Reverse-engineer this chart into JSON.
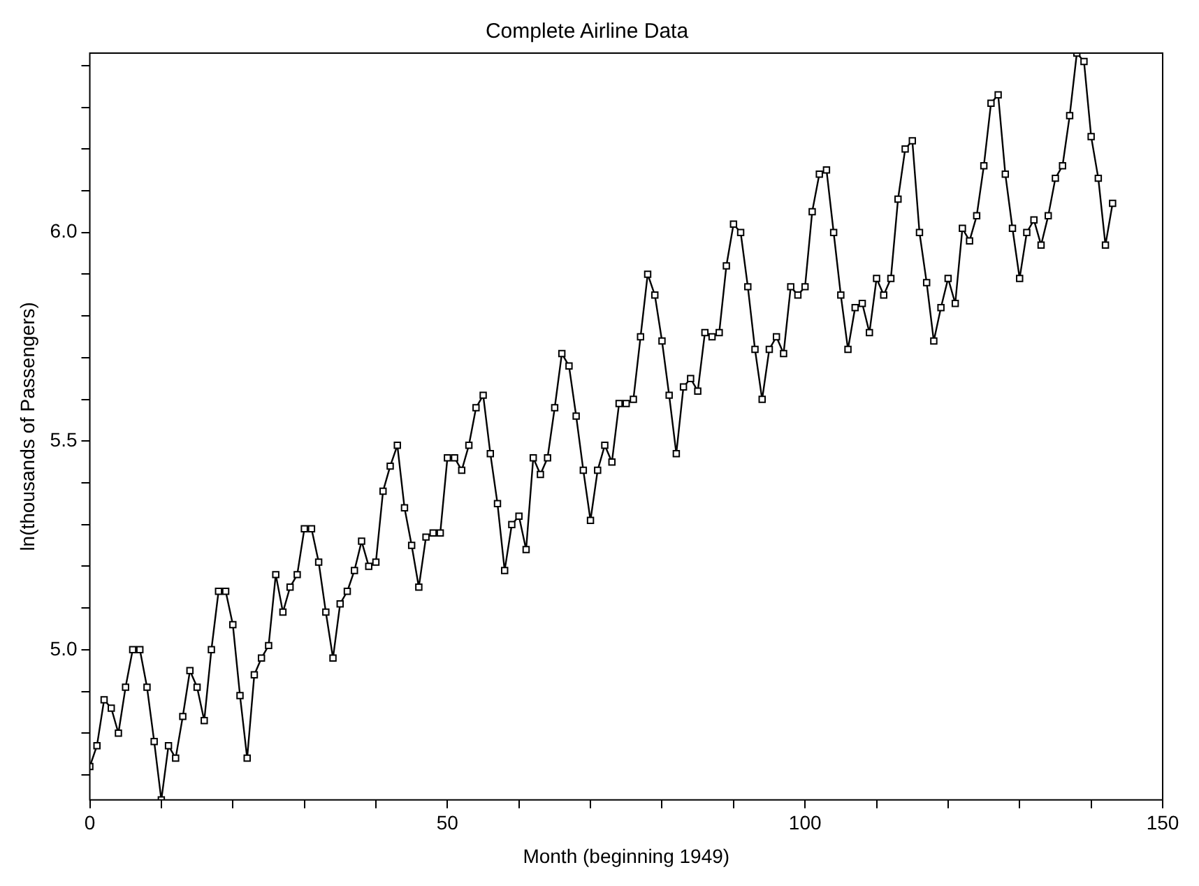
{
  "chart_data": {
    "type": "line",
    "title": "Complete Airline Data",
    "xlabel": "Month (beginning 1949)",
    "ylabel": "ln(thousands of Passengers)",
    "x": [
      0,
      1,
      2,
      3,
      4,
      5,
      6,
      7,
      8,
      9,
      10,
      11,
      12,
      13,
      14,
      15,
      16,
      17,
      18,
      19,
      20,
      21,
      22,
      23,
      24,
      25,
      26,
      27,
      28,
      29,
      30,
      31,
      32,
      33,
      34,
      35,
      36,
      37,
      38,
      39,
      40,
      41,
      42,
      43,
      44,
      45,
      46,
      47,
      48,
      49,
      50,
      51,
      52,
      53,
      54,
      55,
      56,
      57,
      58,
      59,
      60,
      61,
      62,
      63,
      64,
      65,
      66,
      67,
      68,
      69,
      70,
      71,
      72,
      73,
      74,
      75,
      76,
      77,
      78,
      79,
      80,
      81,
      82,
      83,
      84,
      85,
      86,
      87,
      88,
      89,
      90,
      91,
      92,
      93,
      94,
      95,
      96,
      97,
      98,
      99,
      100,
      101,
      102,
      103,
      104,
      105,
      106,
      107,
      108,
      109,
      110,
      111,
      112,
      113,
      114,
      115,
      116,
      117,
      118,
      119,
      120,
      121,
      122,
      123,
      124,
      125,
      126,
      127,
      128,
      129,
      130,
      131,
      132,
      133,
      134,
      135,
      136,
      137,
      138,
      139,
      140,
      141,
      142,
      143
    ],
    "series": [
      {
        "color": "#000000",
        "values": [
          4.72,
          4.77,
          4.88,
          4.86,
          4.8,
          4.91,
          5.0,
          5.0,
          4.91,
          4.78,
          4.64,
          4.77,
          4.74,
          4.84,
          4.95,
          4.91,
          4.83,
          5.0,
          5.14,
          5.14,
          5.06,
          4.89,
          4.74,
          4.94,
          4.98,
          5.01,
          5.18,
          5.09,
          5.15,
          5.18,
          5.29,
          5.29,
          5.21,
          5.09,
          4.98,
          5.11,
          5.14,
          5.19,
          5.26,
          5.2,
          5.21,
          5.38,
          5.44,
          5.49,
          5.34,
          5.25,
          5.15,
          5.27,
          5.28,
          5.28,
          5.46,
          5.46,
          5.43,
          5.49,
          5.58,
          5.61,
          5.47,
          5.35,
          5.19,
          5.3,
          5.32,
          5.24,
          5.46,
          5.42,
          5.46,
          5.58,
          5.71,
          5.68,
          5.56,
          5.43,
          5.31,
          5.43,
          5.49,
          5.45,
          5.59,
          5.59,
          5.6,
          5.75,
          5.9,
          5.85,
          5.74,
          5.61,
          5.47,
          5.63,
          5.65,
          5.62,
          5.76,
          5.75,
          5.76,
          5.92,
          6.02,
          6.0,
          5.87,
          5.72,
          5.6,
          5.72,
          5.75,
          5.71,
          5.87,
          5.85,
          5.87,
          6.05,
          6.14,
          6.15,
          6.0,
          5.85,
          5.72,
          5.82,
          5.83,
          5.76,
          5.89,
          5.85,
          5.89,
          6.08,
          6.2,
          6.22,
          6.0,
          5.88,
          5.74,
          5.82,
          5.89,
          5.83,
          6.01,
          5.98,
          6.04,
          6.16,
          6.31,
          6.33,
          6.14,
          6.01,
          5.89,
          6.0,
          6.03,
          5.97,
          6.04,
          6.13,
          6.16,
          6.28,
          6.43,
          6.41,
          6.23,
          6.13,
          5.97,
          6.07
        ]
      }
    ],
    "xlim": [
      0,
      150
    ],
    "ylim": [
      4.64,
      6.43
    ],
    "xticks": [
      0,
      {
        "value": 10,
        "label": null
      },
      {
        "value": 20,
        "label": null
      },
      {
        "value": 30,
        "label": null
      },
      {
        "value": 40,
        "label": null
      },
      50,
      {
        "value": 60,
        "label": null
      },
      {
        "value": 70,
        "label": null
      },
      {
        "value": 80,
        "label": null
      },
      {
        "value": 90,
        "label": null
      },
      100,
      {
        "value": 110,
        "label": null
      },
      {
        "value": 120,
        "label": null
      },
      {
        "value": 130,
        "label": null
      },
      {
        "value": 140,
        "label": null
      },
      150
    ],
    "yticks": [
      {
        "value": 4.7,
        "label": null
      },
      {
        "value": 4.8,
        "label": null
      },
      {
        "value": 4.9,
        "label": null
      },
      {
        "value": 5,
        "label": "5.0"
      },
      {
        "value": 5.1,
        "label": null
      },
      {
        "value": 5.2,
        "label": null
      },
      {
        "value": 5.3,
        "label": null
      },
      {
        "value": 5.4,
        "label": null
      },
      {
        "value": 5.5,
        "label": "5.5"
      },
      {
        "value": 5.6,
        "label": null
      },
      {
        "value": 5.7,
        "label": null
      },
      {
        "value": 5.8,
        "label": null
      },
      {
        "value": 5.9,
        "label": null
      },
      {
        "value": 6,
        "label": "6.0"
      },
      {
        "value": 6.1,
        "label": null
      },
      {
        "value": 6.2,
        "label": null
      },
      {
        "value": 6.3,
        "label": null
      },
      {
        "value": 6.4,
        "label": null
      }
    ],
    "grid": false,
    "legend": false,
    "marker": "square",
    "line_style": "solid"
  }
}
